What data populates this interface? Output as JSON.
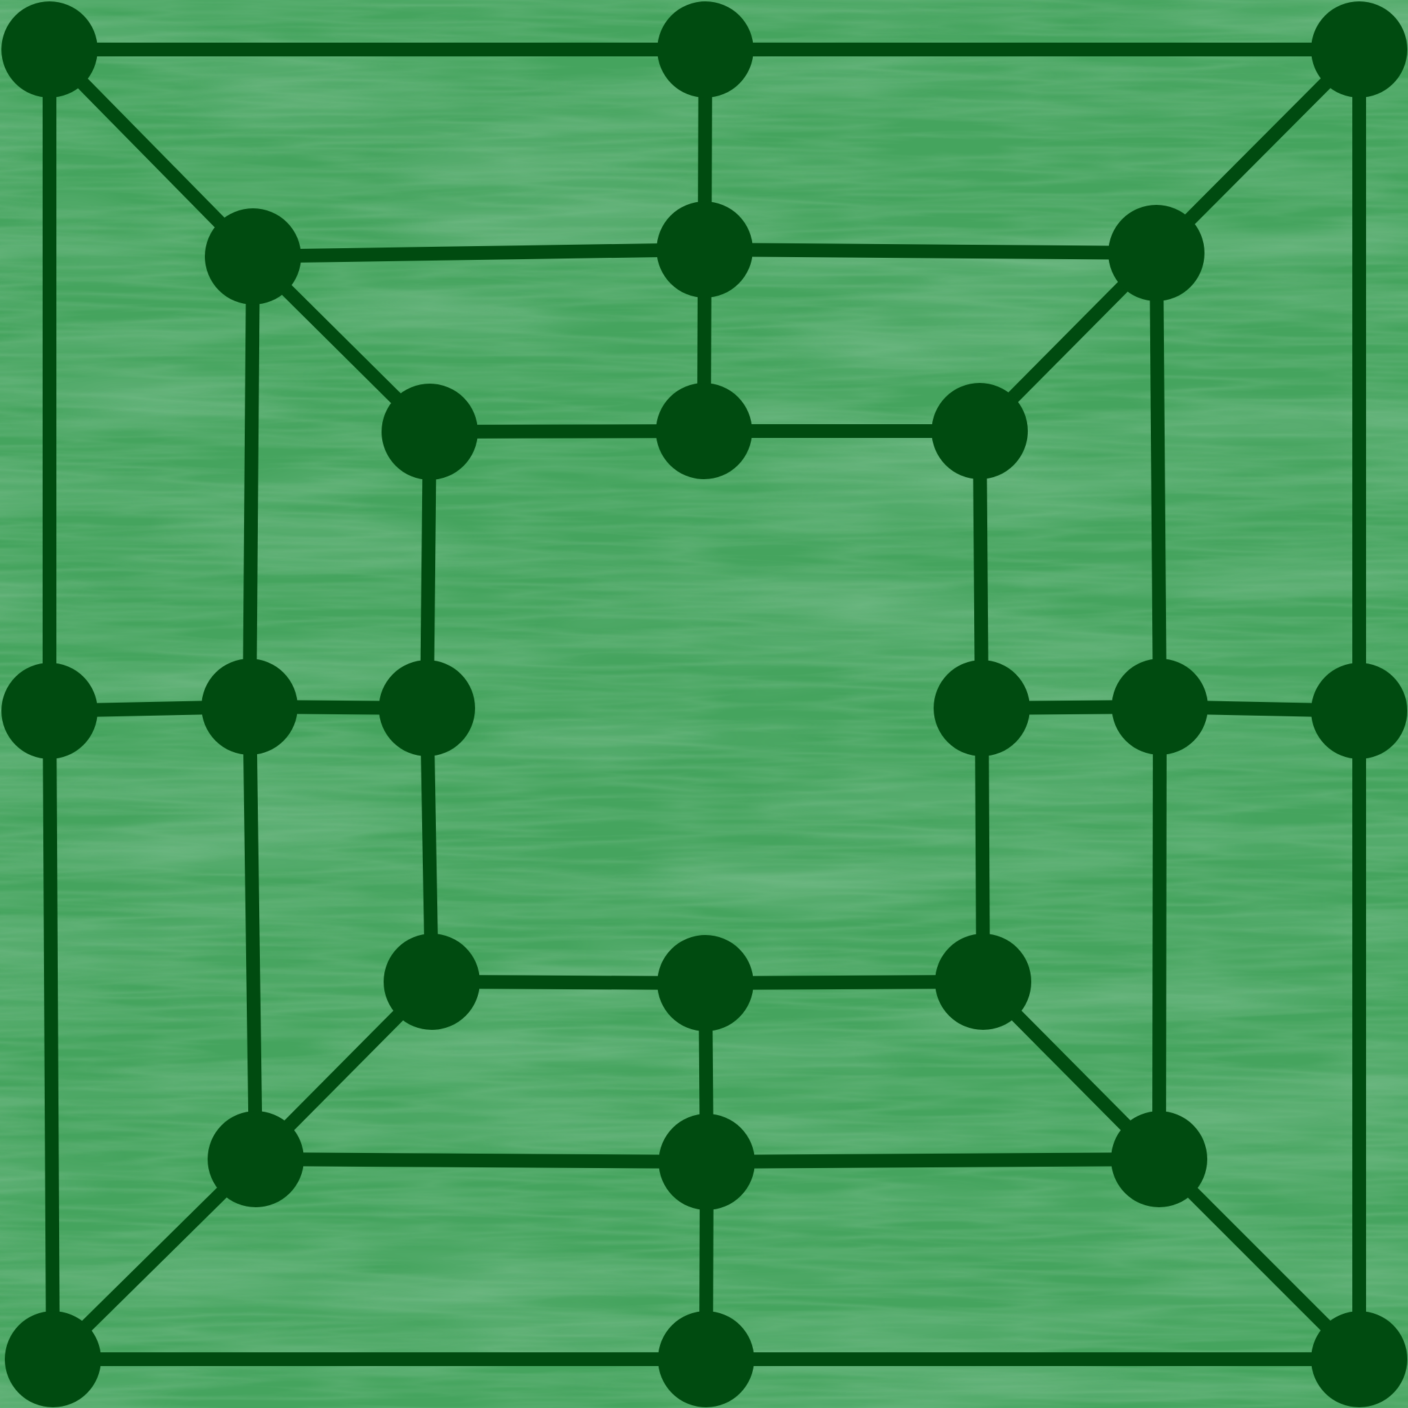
{
  "game": {
    "type": "nine-mens-morris",
    "colors": {
      "background": "#45a45e",
      "grass_dark": "#3a8c4f",
      "grass_light": "#4aab63",
      "line": "#004b10",
      "point": "#004b10"
    },
    "rings": [
      "outer",
      "middle",
      "inner"
    ],
    "points_per_ring": 8,
    "pieces_on_board": 0
  }
}
